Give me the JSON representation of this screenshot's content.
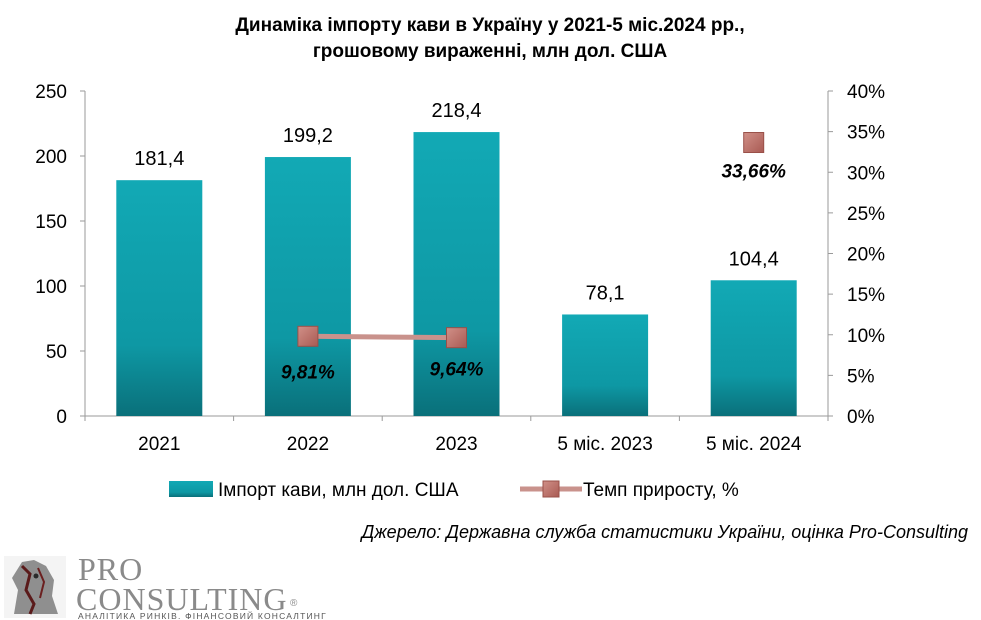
{
  "chart_data": {
    "type": "bar",
    "title_lines": [
      "Динаміка імпорту кави в Україну у 2021-5 міс.2024 рр.,",
      "грошовому вираженні, млн дол. США"
    ],
    "categories": [
      "2021",
      "2022",
      "2023",
      "5 міс. 2023",
      "5 міс. 2024"
    ],
    "series": [
      {
        "name": "Імпорт кави, млн дол. США",
        "type": "bar",
        "axis": "left",
        "values": [
          181.4,
          199.2,
          218.4,
          78.1,
          104.4
        ],
        "labels": [
          "181,4",
          "199,2",
          "218,4",
          "78,1",
          "104,4"
        ]
      },
      {
        "name": "Темп приросту, %",
        "type": "line",
        "axis": "right",
        "values": [
          null,
          9.81,
          9.64,
          null,
          33.66
        ],
        "labels": [
          "",
          "9,81%",
          "9,64%",
          "",
          "33,66%"
        ]
      }
    ],
    "y_left": {
      "min": 0,
      "max": 250,
      "ticks": [
        0,
        50,
        100,
        150,
        200,
        250
      ],
      "tick_labels": [
        "0",
        "50",
        "100",
        "150",
        "200",
        "250"
      ]
    },
    "y_right": {
      "min": 0,
      "max": 40,
      "ticks": [
        0,
        5,
        10,
        15,
        20,
        25,
        30,
        35,
        40
      ],
      "tick_labels": [
        "0%",
        "5%",
        "10%",
        "15%",
        "20%",
        "25%",
        "30%",
        "35%",
        "40%"
      ]
    },
    "grid": false,
    "legend": "bottom",
    "colors": {
      "bar": "#0e9aa7",
      "bar_dark": "#0a6f78",
      "line": "#c9928c",
      "marker": "#b5675f"
    }
  },
  "source_text": "Джерело: Державна служба статистики України, оцінка Pro-Consulting",
  "logo": {
    "pro": "PRO",
    "consulting": "CONSULTING",
    "registered": "®",
    "tagline": "АНАЛІТИКА РИНКІВ. ФІНАНСОВИЙ КОНСАЛТИНГ",
    "icon": "horse-head-icon"
  }
}
